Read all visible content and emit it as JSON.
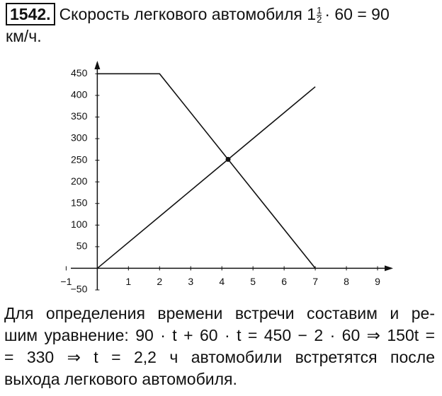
{
  "header": {
    "number": "1542.",
    "text": "Скорость легкового автомобиля",
    "mixed_number": {
      "whole": "1",
      "numerator": "1",
      "denominator": "2"
    },
    "expression": "· 60 = 90",
    "continuation": "км/ч."
  },
  "chart_data": {
    "type": "line",
    "xlim": [
      -0.85,
      9.5
    ],
    "ylim": [
      -50,
      480
    ],
    "xticks": [
      {
        "value": -1,
        "label": "−1"
      },
      1,
      2,
      3,
      4,
      5,
      6,
      7,
      8,
      9
    ],
    "yticks": [
      {
        "value": -50,
        "label": "−50"
      },
      50,
      100,
      150,
      200,
      250,
      300,
      350,
      400,
      450
    ],
    "series": [
      {
        "x": [
          0,
          2,
          7
        ],
        "values": [
          450,
          450,
          0
        ],
        "color": "#111111"
      },
      {
        "x": [
          0,
          7
        ],
        "values": [
          0,
          420
        ],
        "color": "#111111"
      }
    ],
    "points": [
      {
        "x": 4.2,
        "y": 252
      }
    ],
    "grid": false
  },
  "solution": {
    "lines": [
      "Для определения времени встречи составим и ре-",
      "шим уравнение: 90 · t + 60 · t = 450 − 2 · 60 ⇒ 150t =",
      "= 330 ⇒ t = 2,2 ч автомобили встретятся после",
      "выхода легкового автомобиля."
    ]
  }
}
